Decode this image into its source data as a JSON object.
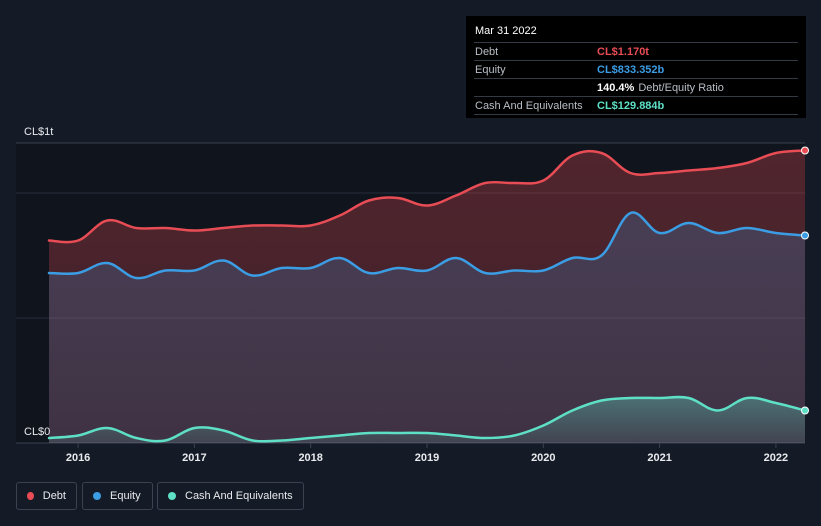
{
  "tooltip": {
    "date": "Mar 31 2022",
    "rows": [
      {
        "label": "Debt",
        "value": "CL$1.170t",
        "color": "#e84c54"
      },
      {
        "label": "Equity",
        "value": "CL$833.352b",
        "color": "#3b9de3"
      },
      {
        "label": "",
        "value": "140.4%",
        "suffix": "Debt/Equity Ratio",
        "color": "#ffffff"
      },
      {
        "label": "Cash And Equivalents",
        "value": "CL$129.884b",
        "color": "#5ee0c6"
      }
    ]
  },
  "legend": [
    {
      "label": "Debt",
      "color": "#e84c54"
    },
    {
      "label": "Equity",
      "color": "#3b9de3"
    },
    {
      "label": "Cash And Equivalents",
      "color": "#5ee0c6"
    }
  ],
  "chart_data": {
    "type": "area",
    "y_unit_labels": {
      "top": "CL$1t",
      "bottom": "CL$0"
    },
    "ylim": [
      0,
      1.2
    ],
    "xlim": [
      2015.75,
      2022.25
    ],
    "x_ticks": [
      "2016",
      "2017",
      "2018",
      "2019",
      "2020",
      "2021",
      "2022"
    ],
    "grid": true,
    "legend_position": "bottom-left",
    "series": [
      {
        "name": "Debt",
        "color": "#e84c54",
        "x": [
          2015.75,
          2016.0,
          2016.25,
          2016.5,
          2016.75,
          2017.0,
          2017.25,
          2017.5,
          2017.75,
          2018.0,
          2018.25,
          2018.5,
          2018.75,
          2019.0,
          2019.25,
          2019.5,
          2019.75,
          2020.0,
          2020.25,
          2020.5,
          2020.75,
          2021.0,
          2021.25,
          2021.5,
          2021.75,
          2022.0,
          2022.25
        ],
        "values": [
          0.81,
          0.81,
          0.89,
          0.86,
          0.86,
          0.85,
          0.86,
          0.87,
          0.87,
          0.87,
          0.91,
          0.97,
          0.98,
          0.95,
          0.99,
          1.04,
          1.04,
          1.05,
          1.15,
          1.16,
          1.08,
          1.08,
          1.09,
          1.1,
          1.12,
          1.16,
          1.17
        ]
      },
      {
        "name": "Equity",
        "color": "#3b9de3",
        "x": [
          2015.75,
          2016.0,
          2016.25,
          2016.5,
          2016.75,
          2017.0,
          2017.25,
          2017.5,
          2017.75,
          2018.0,
          2018.25,
          2018.5,
          2018.75,
          2019.0,
          2019.25,
          2019.5,
          2019.75,
          2020.0,
          2020.25,
          2020.5,
          2020.75,
          2021.0,
          2021.25,
          2021.5,
          2021.75,
          2022.0,
          2022.25
        ],
        "values": [
          0.68,
          0.68,
          0.72,
          0.66,
          0.69,
          0.69,
          0.73,
          0.67,
          0.7,
          0.7,
          0.74,
          0.68,
          0.7,
          0.69,
          0.74,
          0.68,
          0.69,
          0.69,
          0.74,
          0.75,
          0.92,
          0.84,
          0.88,
          0.84,
          0.86,
          0.84,
          0.83
        ]
      },
      {
        "name": "Cash And Equivalents",
        "color": "#5ee0c6",
        "x": [
          2015.75,
          2016.0,
          2016.25,
          2016.5,
          2016.75,
          2017.0,
          2017.25,
          2017.5,
          2017.75,
          2018.0,
          2018.25,
          2018.5,
          2018.75,
          2019.0,
          2019.25,
          2019.5,
          2019.75,
          2020.0,
          2020.25,
          2020.5,
          2020.75,
          2021.0,
          2021.25,
          2021.5,
          2021.75,
          2022.0,
          2022.25
        ],
        "values": [
          0.02,
          0.03,
          0.06,
          0.02,
          0.01,
          0.06,
          0.05,
          0.01,
          0.01,
          0.02,
          0.03,
          0.04,
          0.04,
          0.04,
          0.03,
          0.02,
          0.03,
          0.07,
          0.13,
          0.17,
          0.18,
          0.18,
          0.18,
          0.13,
          0.18,
          0.16,
          0.13
        ]
      }
    ]
  }
}
